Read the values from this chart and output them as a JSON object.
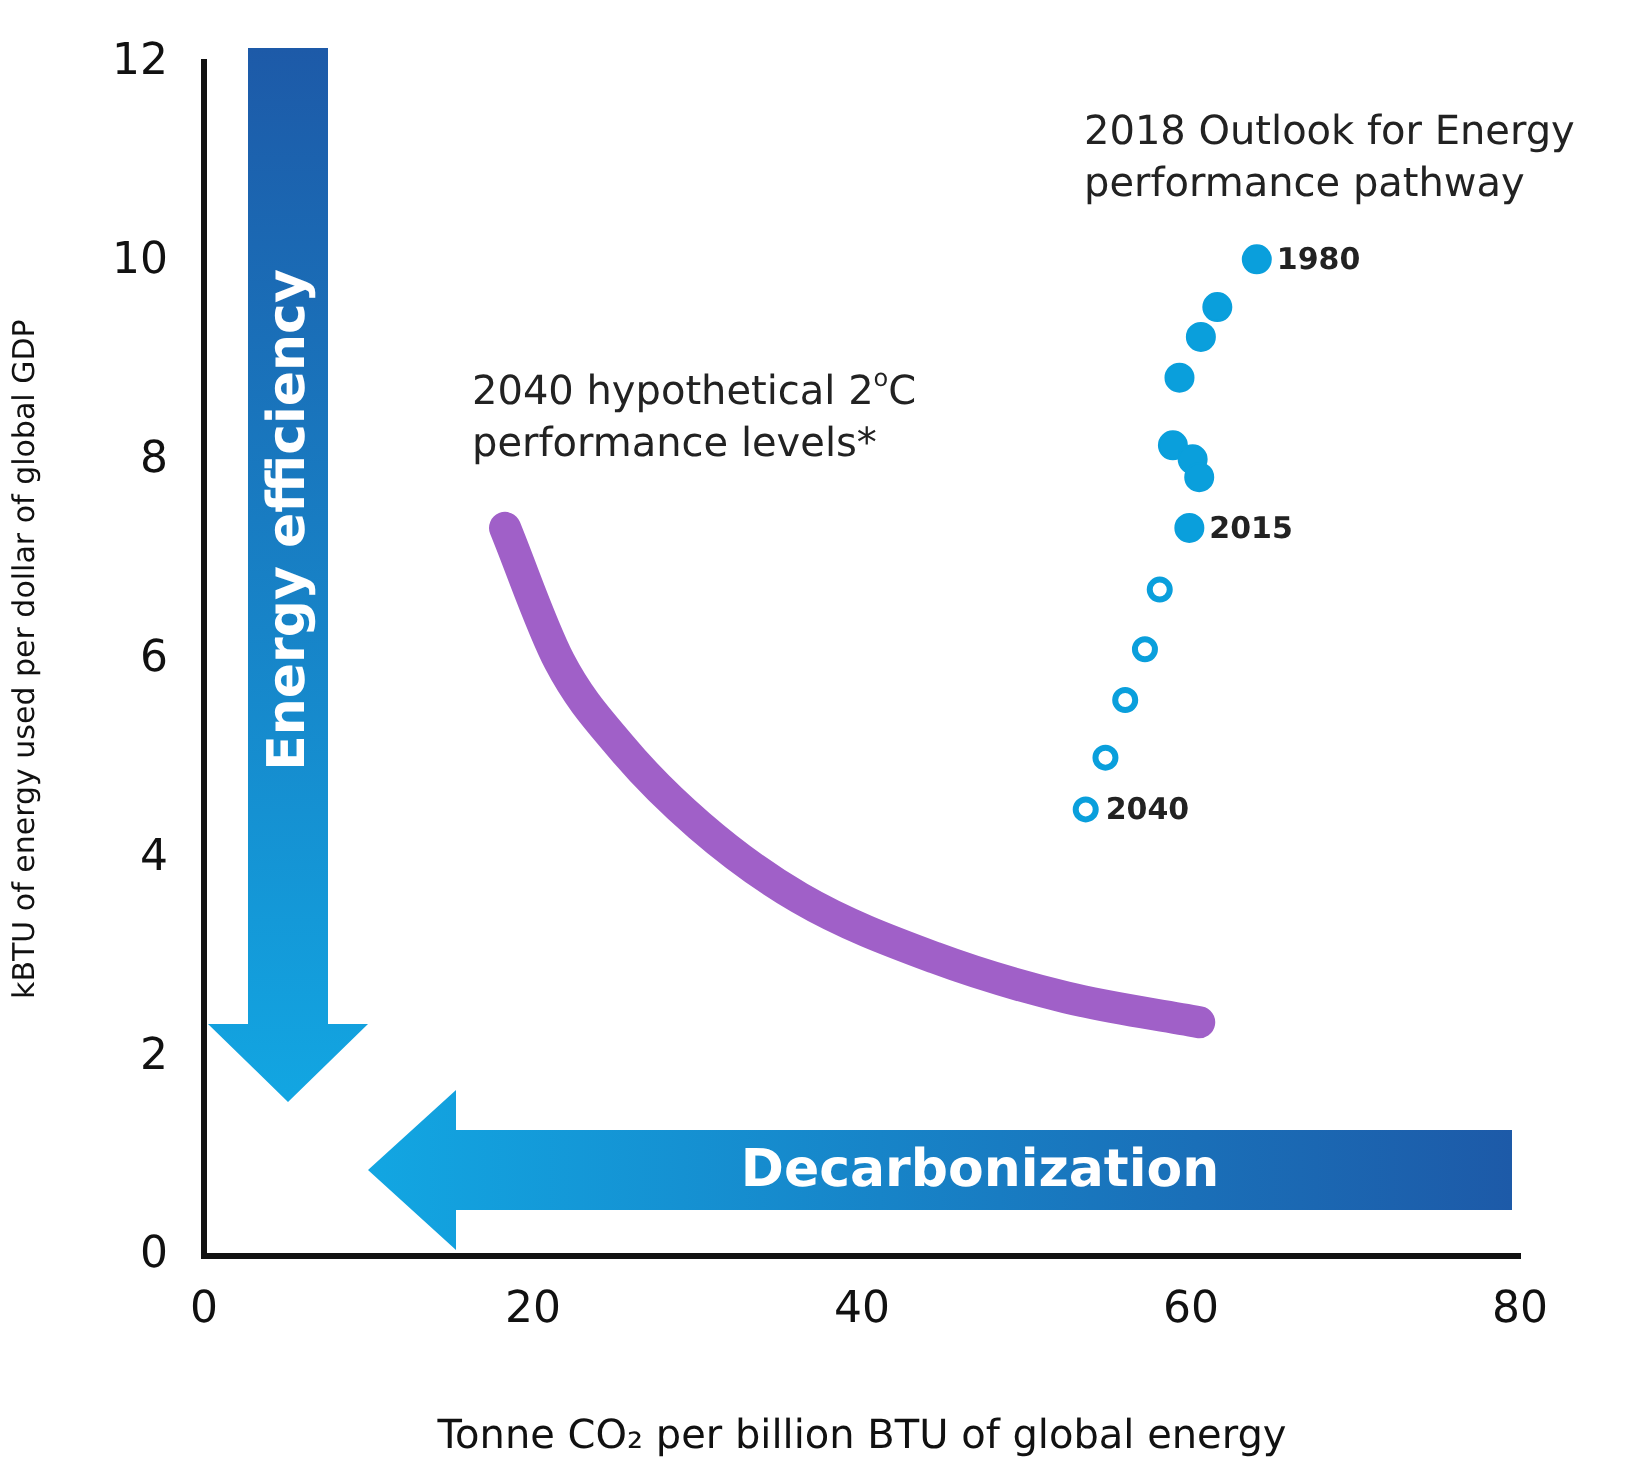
{
  "chart_data": {
    "type": "scatter",
    "xlabel": "Tonne CO₂ per billion BTU of global energy",
    "ylabel": "kBTU of energy used per dollar of global GDP",
    "xlim": [
      0,
      80
    ],
    "xticks": [
      0,
      20,
      40,
      60,
      80
    ],
    "ylim": [
      0,
      12
    ],
    "yticks": [
      0,
      2,
      4,
      6,
      8,
      10,
      12
    ],
    "grid": false,
    "legend": false,
    "series": [
      {
        "type": "line",
        "color": "#a060c8",
        "marker": "none",
        "x": [
          18.3,
          21.6,
          25.3,
          30.1,
          36.2,
          44.4,
          52.4,
          60.5
        ],
        "values": [
          7.32,
          5.98,
          5.13,
          4.33,
          3.6,
          3.0,
          2.6,
          2.35
        ]
      },
      {
        "color": "#0a9fdc",
        "marker": "circle",
        "x": [
          64.0,
          61.6,
          60.6,
          59.3,
          58.9,
          60.1,
          60.5,
          59.9
        ],
        "values": [
          10.02,
          9.54,
          9.24,
          8.83,
          8.15,
          8.01,
          7.83,
          7.32
        ]
      },
      {
        "color": "#0a9fdc",
        "marker": "circle",
        "x": [
          58.1,
          57.2,
          56.0,
          54.8,
          53.6
        ],
        "values": [
          6.7,
          6.1,
          5.59,
          5.01,
          4.49
        ]
      }
    ],
    "annotations": [
      {
        "text": "1980",
        "x": 64.0,
        "y": 10.02
      },
      {
        "text": "2015",
        "x": 59.9,
        "y": 7.32
      },
      {
        "text": "2040",
        "x": 53.6,
        "y": 4.49
      },
      "2040 hypothetical 2$^{o}$C\nperformance levels*",
      "2018 Outlook for Energy\nperformance pathway",
      "Energy efficiency",
      "Decarbonization"
    ]
  }
}
